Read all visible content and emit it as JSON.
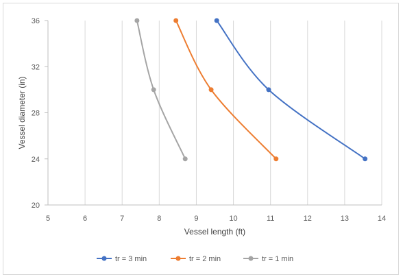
{
  "chart_data": {
    "type": "scatter",
    "title": "",
    "xlabel": "Vessel length (ft)",
    "ylabel": "Vessel diameter (in)",
    "xlim": [
      5,
      14
    ],
    "ylim": [
      20,
      36
    ],
    "xticks": [
      5,
      6,
      7,
      8,
      9,
      10,
      11,
      12,
      13,
      14
    ],
    "yticks": [
      20,
      24,
      28,
      32,
      36
    ],
    "grid": "vertical",
    "legend_position": "bottom",
    "smooth_lines": true,
    "series": [
      {
        "name": "tr = 3 min",
        "color": "#4472C4",
        "x": [
          13.55,
          10.95,
          9.55
        ],
        "y": [
          24,
          30,
          36
        ]
      },
      {
        "name": "tr = 2 min",
        "color": "#ED7D31",
        "x": [
          11.15,
          9.4,
          8.45
        ],
        "y": [
          24,
          30,
          36
        ]
      },
      {
        "name": "tr = 1 min",
        "color": "#A5A5A5",
        "x": [
          8.7,
          7.85,
          7.4
        ],
        "y": [
          24,
          30,
          36
        ]
      }
    ]
  }
}
